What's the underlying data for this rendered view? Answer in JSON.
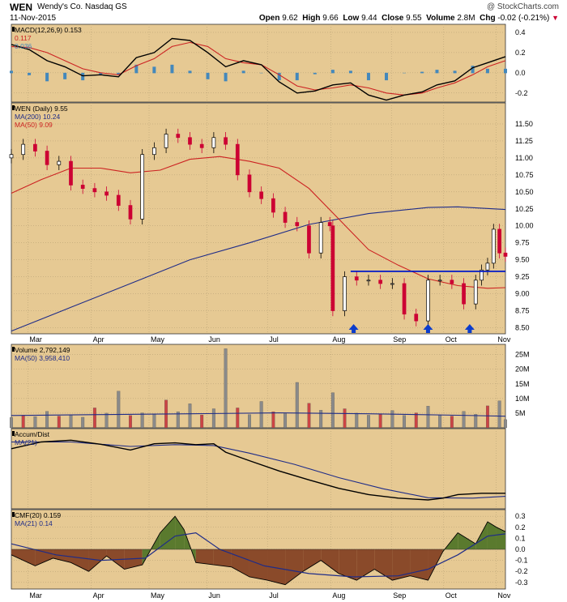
{
  "header": {
    "ticker": "WEN",
    "company": "Wendy's Co.  Nasdaq GS",
    "date": "11-Nov-2015",
    "watermark": "@ StockCharts.com",
    "open_label": "Open",
    "open": "9.62",
    "high_label": "High",
    "high": "9.66",
    "low_label": "Low",
    "low": "9.44",
    "close_label": "Close",
    "close": "9.55",
    "volume_label": "Volume",
    "volume": "2.8M",
    "chg_label": "Chg",
    "chg": "-0.02 (-0.21%)",
    "chg_arrow": "▼"
  },
  "colors": {
    "panel_bg": "#e6c993",
    "grid": "#b09a70",
    "up_candle": "#ffffff",
    "down_candle": "#cc0033",
    "ma200": "#1f2c88",
    "ma50": "#cc2222",
    "resistance": "#0018c8",
    "arrow": "#0b3ccc",
    "macd_hist": "#4488bb",
    "cmf_pos": "#5a7a2e",
    "cmf_neg": "#8a4a2a",
    "vol_up": "#8a8a8a",
    "vol_down": "#cc4444"
  },
  "chart_data": [
    {
      "type": "line",
      "panel": "macd",
      "legend": [
        {
          "text": "MACD(12,26,9) 0.153",
          "color": "#000000"
        },
        {
          "text": "0.117",
          "color": "#cc2222"
        },
        {
          "text": "0.036",
          "color": "#4488bb"
        }
      ],
      "y_ticks": [
        "0.4",
        "0.2",
        "0.0",
        "-0.2"
      ],
      "ylim": [
        -0.29,
        0.48
      ],
      "series": [
        {
          "name": "MACD",
          "x": [
            0,
            6,
            12,
            18,
            24,
            30,
            36,
            42,
            48,
            54,
            60,
            66,
            72,
            78,
            84,
            90,
            96,
            102,
            108,
            114,
            120,
            126,
            132,
            138,
            143,
            149,
            155,
            160,
            166
          ],
          "values": [
            0.28,
            0.23,
            0.12,
            0.06,
            -0.03,
            -0.02,
            -0.04,
            0.15,
            0.2,
            0.34,
            0.32,
            0.2,
            0.06,
            0.12,
            0.08,
            -0.09,
            -0.2,
            -0.18,
            -0.12,
            -0.1,
            -0.22,
            -0.27,
            -0.22,
            -0.19,
            -0.12,
            -0.08,
            0.05,
            0.1,
            0.16
          ]
        },
        {
          "name": "Signal",
          "x": [
            0,
            6,
            12,
            18,
            24,
            30,
            36,
            42,
            48,
            54,
            60,
            66,
            72,
            78,
            84,
            90,
            96,
            102,
            108,
            114,
            120,
            126,
            132,
            138,
            143,
            149,
            155,
            160,
            166
          ],
          "values": [
            0.26,
            0.25,
            0.2,
            0.12,
            0.04,
            0.0,
            -0.02,
            0.07,
            0.14,
            0.26,
            0.3,
            0.26,
            0.14,
            0.1,
            0.08,
            -0.02,
            -0.13,
            -0.17,
            -0.15,
            -0.12,
            -0.15,
            -0.2,
            -0.22,
            -0.2,
            -0.15,
            -0.1,
            -0.02,
            0.06,
            0.12
          ]
        }
      ],
      "hist": {
        "x": [
          0,
          6,
          12,
          18,
          24,
          30,
          36,
          42,
          48,
          54,
          60,
          66,
          72,
          78,
          84,
          90,
          96,
          102,
          108,
          114,
          120,
          126,
          132,
          138,
          143,
          149,
          155,
          160,
          166
        ],
        "values": [
          0.02,
          -0.02,
          -0.08,
          -0.06,
          -0.07,
          -0.02,
          -0.02,
          0.08,
          0.06,
          0.08,
          0.02,
          -0.06,
          -0.08,
          0.02,
          0.0,
          -0.07,
          -0.07,
          -0.01,
          0.03,
          0.02,
          -0.07,
          -0.07,
          0.0,
          0.01,
          0.03,
          0.02,
          0.07,
          0.04,
          0.04
        ]
      }
    },
    {
      "type": "candlestick",
      "panel": "price",
      "legend": [
        {
          "text": "WEN (Daily) 9.55",
          "color": "#000000"
        },
        {
          "text": "MA(200) 10.24",
          "color": "#1f2c88"
        },
        {
          "text": "MA(50) 9.09",
          "color": "#cc2222"
        }
      ],
      "y_ticks": [
        "11.50",
        "11.25",
        "11.00",
        "10.75",
        "10.50",
        "10.25",
        "10.00",
        "9.75",
        "9.50",
        "9.25",
        "9.00",
        "8.75",
        "8.50"
      ],
      "ylim": [
        8.41,
        11.81
      ],
      "x_ticks": [
        "Mar",
        "Apr",
        "May",
        "Jun",
        "Jul",
        "Aug",
        "Sep",
        "Oct",
        "Nov"
      ],
      "close": {
        "x": [
          0,
          4,
          8,
          12,
          16,
          20,
          24,
          28,
          32,
          36,
          40,
          44,
          48,
          52,
          56,
          60,
          64,
          68,
          72,
          76,
          80,
          84,
          88,
          92,
          96,
          100,
          104,
          107,
          108,
          112,
          116,
          120,
          124,
          128,
          132,
          136,
          140,
          144,
          148,
          152,
          156,
          158,
          160,
          162,
          164,
          166
        ],
        "values": [
          11.05,
          11.2,
          11.1,
          10.9,
          10.95,
          10.6,
          10.55,
          10.5,
          10.45,
          10.3,
          10.1,
          11.05,
          11.15,
          11.35,
          11.3,
          11.2,
          11.15,
          11.3,
          11.2,
          10.75,
          10.5,
          10.4,
          10.2,
          10.05,
          10.0,
          9.6,
          10.05,
          10.0,
          8.75,
          9.25,
          9.2,
          9.2,
          9.15,
          9.15,
          8.7,
          8.6,
          9.2,
          9.2,
          9.15,
          8.85,
          9.2,
          9.35,
          9.45,
          9.95,
          9.6,
          9.55
        ]
      },
      "ma200": {
        "x": [
          0,
          20,
          40,
          60,
          80,
          100,
          120,
          140,
          150,
          166
        ],
        "values": [
          8.45,
          8.8,
          9.15,
          9.5,
          9.75,
          10.02,
          10.18,
          10.27,
          10.28,
          10.24
        ]
      },
      "ma50": {
        "x": [
          0,
          10,
          20,
          30,
          40,
          50,
          60,
          70,
          80,
          90,
          100,
          110,
          120,
          130,
          140,
          150,
          160,
          166
        ],
        "values": [
          10.48,
          10.68,
          10.85,
          10.85,
          10.78,
          10.82,
          10.98,
          11.02,
          10.95,
          10.85,
          10.55,
          10.1,
          9.65,
          9.42,
          9.22,
          9.12,
          9.08,
          9.09
        ]
      },
      "annotations": {
        "resistance": {
          "x_start": 114,
          "x_end": 166,
          "y": 9.33
        },
        "arrows": [
          {
            "x": 115,
            "y": 8.45
          },
          {
            "x": 140,
            "y": 8.41
          },
          {
            "x": 154,
            "y": 8.47
          }
        ]
      }
    },
    {
      "type": "bar",
      "panel": "volume",
      "legend": [
        {
          "text": "Volume 2,792,149",
          "color": "#000000"
        },
        {
          "text": "MA(50) 3,958,410",
          "color": "#1f2c88"
        }
      ],
      "y_ticks": [
        "25M",
        "20M",
        "15M",
        "10M",
        "5M"
      ],
      "ylim": [
        0,
        28.5
      ],
      "x": [
        0,
        4,
        8,
        12,
        16,
        20,
        24,
        28,
        32,
        36,
        40,
        44,
        48,
        52,
        56,
        60,
        64,
        68,
        72,
        76,
        80,
        84,
        88,
        92,
        96,
        100,
        104,
        108,
        112,
        116,
        120,
        124,
        128,
        132,
        136,
        140,
        144,
        148,
        152,
        156,
        160,
        164,
        166
      ],
      "values": [
        3.5,
        4.2,
        3.8,
        5.6,
        4.0,
        4.5,
        3.6,
        6.8,
        5.0,
        12.5,
        4.2,
        5.1,
        4.8,
        9.5,
        5.5,
        8.2,
        4.4,
        6.5,
        27.0,
        6.8,
        4.5,
        9.0,
        5.5,
        4.8,
        15.5,
        8.4,
        6.0,
        12.0,
        6.5,
        5.0,
        4.3,
        4.6,
        5.9,
        4.2,
        5.1,
        7.4,
        4.4,
        4.0,
        5.6,
        4.6,
        7.5,
        9.2,
        2.8
      ],
      "ma50": {
        "x": [
          0,
          30,
          60,
          90,
          120,
          150,
          166
        ],
        "values": [
          4.2,
          4.5,
          4.8,
          5.1,
          4.8,
          4.3,
          3.96
        ]
      }
    },
    {
      "type": "line",
      "panel": "accum_dist",
      "legend": [
        {
          "text": "Accum/Dist",
          "color": "#000000"
        },
        {
          "text": "MA(21)",
          "color": "#1f2c88"
        }
      ],
      "series": [
        {
          "name": "Accum/Dist",
          "x": [
            0,
            10,
            20,
            30,
            40,
            48,
            55,
            62,
            68,
            72,
            80,
            90,
            100,
            110,
            120,
            130,
            140,
            145,
            150,
            158,
            166
          ],
          "values": [
            0.45,
            0.6,
            0.64,
            0.55,
            0.42,
            0.56,
            0.58,
            0.54,
            0.56,
            0.37,
            0.18,
            -0.05,
            -0.25,
            -0.44,
            -0.58,
            -0.66,
            -0.7,
            -0.66,
            -0.58,
            -0.55,
            -0.55
          ]
        },
        {
          "name": "MA(21)",
          "x": [
            0,
            20,
            40,
            55,
            68,
            80,
            95,
            110,
            125,
            140,
            155,
            166
          ],
          "values": [
            0.6,
            0.6,
            0.5,
            0.54,
            0.52,
            0.35,
            0.1,
            -0.2,
            -0.45,
            -0.65,
            -0.66,
            -0.62
          ]
        }
      ]
    },
    {
      "type": "area",
      "panel": "cmf",
      "legend": [
        {
          "text": "CMF(20) 0.159",
          "color": "#000000"
        },
        {
          "text": "MA(21) 0.14",
          "color": "#1f2c88"
        }
      ],
      "y_ticks": [
        "0.3",
        "0.2",
        "0.1",
        "0.0",
        "-0.1",
        "-0.2",
        "-0.3"
      ],
      "ylim": [
        -0.36,
        0.36
      ],
      "series": [
        {
          "name": "CMF(20)",
          "x": [
            0,
            8,
            14,
            20,
            26,
            32,
            38,
            44,
            50,
            55,
            58,
            62,
            68,
            74,
            80,
            86,
            92,
            98,
            104,
            110,
            116,
            122,
            128,
            134,
            140,
            145,
            150,
            156,
            160,
            163,
            166
          ],
          "values": [
            -0.05,
            -0.15,
            -0.08,
            -0.12,
            -0.2,
            -0.06,
            -0.18,
            -0.14,
            0.15,
            0.3,
            0.18,
            -0.12,
            -0.14,
            -0.16,
            -0.25,
            -0.28,
            -0.32,
            -0.2,
            -0.1,
            -0.22,
            -0.28,
            -0.18,
            -0.28,
            -0.24,
            -0.28,
            -0.02,
            0.15,
            0.05,
            0.25,
            0.2,
            0.16
          ]
        },
        {
          "name": "MA(21)",
          "x": [
            0,
            15,
            30,
            45,
            55,
            62,
            70,
            85,
            100,
            115,
            130,
            140,
            150,
            160,
            166
          ],
          "values": [
            0.05,
            -0.05,
            -0.1,
            -0.08,
            0.12,
            0.15,
            0.0,
            -0.15,
            -0.22,
            -0.25,
            -0.24,
            -0.18,
            -0.05,
            0.12,
            0.14
          ]
        }
      ]
    }
  ]
}
